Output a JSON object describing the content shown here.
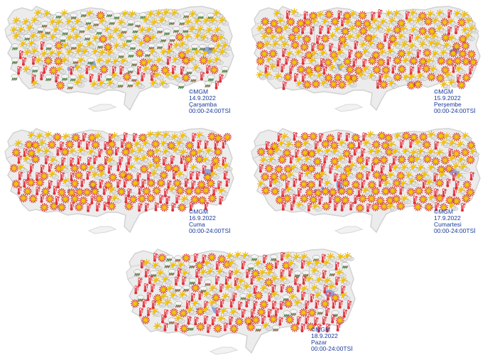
{
  "maps": [
    {
      "copyright": "©MGM",
      "date": "14.9.2022",
      "day": "Çarşamba",
      "hours": "00:00-24:00TSİ"
    },
    {
      "copyright": "©MGM",
      "date": "15.9.2022",
      "day": "Perşembe",
      "hours": "00:00-24:00TSİ"
    },
    {
      "copyright": "©MGM",
      "date": "16.9.2022",
      "day": "Cuma",
      "hours": "00:00-24:00TSİ"
    },
    {
      "copyright": "©MGM",
      "date": "17.9.2022",
      "day": "Cumartesi",
      "hours": "00:00-24:00TSİ"
    },
    {
      "copyright": "©MGM",
      "date": "18.9.2022",
      "day": "Pazar",
      "hours": "00:00-24:00TSİ"
    }
  ],
  "legend_icons": [
    "sun-icon",
    "partly-cloudy-icon",
    "rain-showers-icon",
    "hot-thermometer-icon"
  ],
  "colors": {
    "land": "#ececec",
    "border": "#b9b9b9",
    "lake": "#8fa3dc",
    "sun": "#f2c400",
    "sun_ray": "#d9342a",
    "thermo": "#e0303a",
    "cloud": "#e4e4e4",
    "rain": "#2e8b3a",
    "caption_text": "#1a3a9a"
  }
}
